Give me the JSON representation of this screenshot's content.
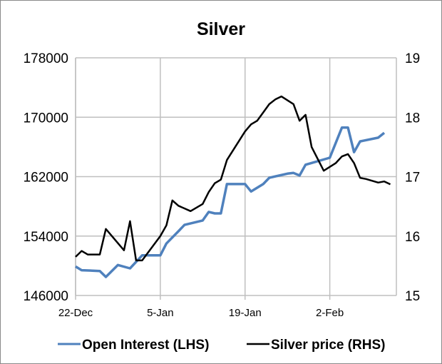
{
  "chart_data": {
    "type": "line",
    "title": "Silver",
    "x_ticks": [
      "22-Dec",
      "5-Jan",
      "19-Jan",
      "2-Feb"
    ],
    "x_range": [
      "22-Dec",
      "13-Feb"
    ],
    "y_left": {
      "range": [
        146000,
        178000
      ],
      "ticks": [
        146000,
        154000,
        162000,
        170000,
        178000
      ]
    },
    "y_right": {
      "range": [
        15,
        19
      ],
      "ticks": [
        15,
        16,
        17,
        18,
        19
      ]
    },
    "grid": true,
    "legend_position": "bottom",
    "series": [
      {
        "name": "Open Interest (LHS)",
        "axis": "left",
        "color": "#4f81bd",
        "x": [
          "22-Dec",
          "23-Dec",
          "26-Dec",
          "27-Dec",
          "29-Dec",
          "31-Dec",
          "2-Jan",
          "5-Jan",
          "6-Jan",
          "8-Jan",
          "9-Jan",
          "12-Jan",
          "13-Jan",
          "14-Jan",
          "15-Jan",
          "16-Jan",
          "19-Jan",
          "20-Jan",
          "22-Jan",
          "23-Jan",
          "26-Jan",
          "27-Jan",
          "28-Jan",
          "29-Jan",
          "2-Feb",
          "4-Feb",
          "5-Feb",
          "6-Feb",
          "7-Feb",
          "10-Feb",
          "11-Feb"
        ],
        "values": [
          149900,
          149400,
          149300,
          148500,
          150100,
          149650,
          151400,
          151400,
          153000,
          154650,
          155500,
          156100,
          157250,
          157050,
          157050,
          161000,
          161000,
          160000,
          161000,
          161850,
          162400,
          162500,
          162150,
          163600,
          164550,
          168600,
          168600,
          165300,
          166750,
          167250,
          167900
        ]
      },
      {
        "name": "Silver price (RHS)",
        "axis": "right",
        "color": "#000000",
        "x": [
          "22-Dec",
          "23-Dec",
          "24-Dec",
          "26-Dec",
          "27-Dec",
          "30-Dec",
          "31-Dec",
          "1-Jan",
          "2-Jan",
          "5-Jan",
          "6-Jan",
          "7-Jan",
          "8-Jan",
          "10-Jan",
          "12-Jan",
          "13-Jan",
          "14-Jan",
          "15-Jan",
          "16-Jan",
          "19-Jan",
          "20-Jan",
          "21-Jan",
          "22-Jan",
          "23-Jan",
          "24-Jan",
          "25-Jan",
          "27-Jan",
          "28-Jan",
          "29-Jan",
          "30-Jan",
          "1-Feb",
          "3-Feb",
          "4-Feb",
          "5-Feb",
          "6-Feb",
          "7-Feb",
          "8-Feb",
          "10-Feb",
          "11-Feb",
          "12-Feb"
        ],
        "values": [
          15.65,
          15.75,
          15.69,
          15.69,
          16.12,
          15.76,
          16.25,
          15.59,
          15.59,
          16.0,
          16.18,
          16.6,
          16.51,
          16.42,
          16.54,
          16.74,
          16.89,
          16.95,
          17.28,
          17.76,
          17.88,
          17.94,
          18.08,
          18.22,
          18.3,
          18.35,
          18.22,
          17.94,
          18.04,
          17.5,
          17.1,
          17.23,
          17.34,
          17.38,
          17.23,
          16.98,
          16.96,
          16.9,
          16.92,
          16.87
        ]
      }
    ]
  }
}
